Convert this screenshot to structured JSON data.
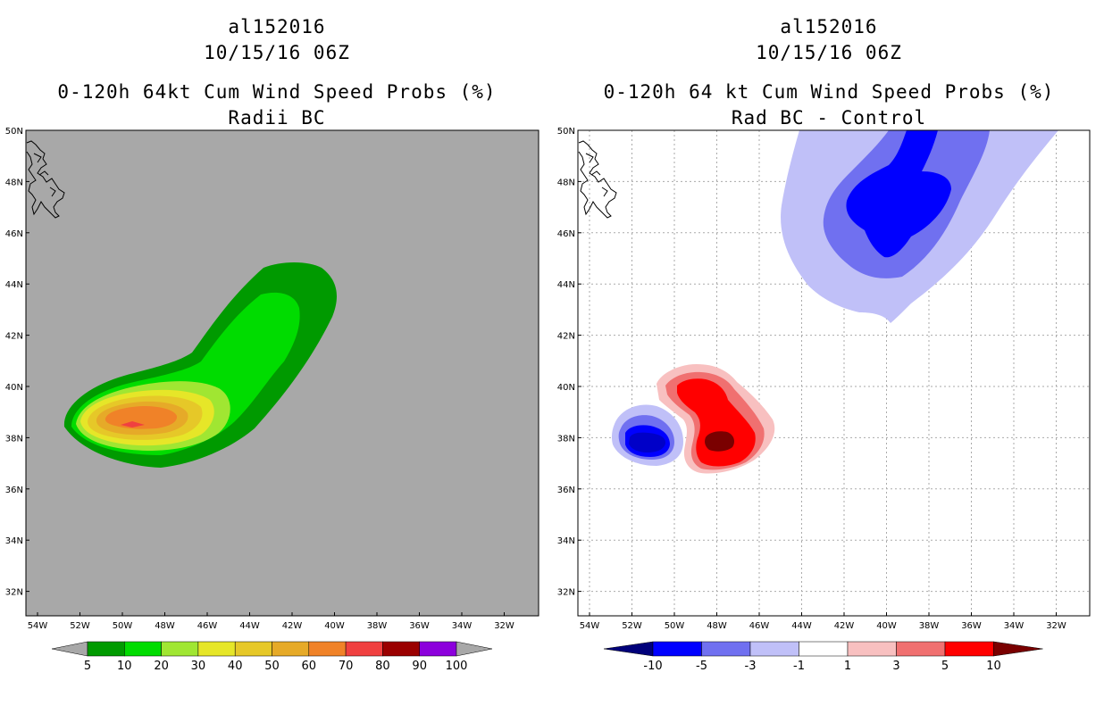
{
  "left_panel": {
    "storm_id": "al152016",
    "date_time": "10/15/16 06Z",
    "title_line1": "0-120h 64kt Cum Wind Speed Probs (%)",
    "title_line2": "Radii BC",
    "background_color": "#a8a8a8",
    "colorbar": {
      "colors": [
        "#009a00",
        "#00dc00",
        "#a0e632",
        "#e6e628",
        "#e6c828",
        "#e6aa28",
        "#f08228",
        "#f04040",
        "#9a0000",
        "#8c00dc"
      ],
      "labels": [
        "5",
        "10",
        "20",
        "30",
        "40",
        "50",
        "60",
        "70",
        "80",
        "90",
        "100"
      ],
      "arrow_color": "#a8a8a8"
    }
  },
  "right_panel": {
    "storm_id": "al152016",
    "date_time": "10/15/16 06Z",
    "title_line1": "0-120h 64 kt Cum Wind Speed Probs (%)",
    "title_line2": "Rad BC - Control",
    "background_color": "#ffffff",
    "colorbar": {
      "colors": [
        "#0000c8",
        "#0000ff",
        "#7070f0",
        "#c0c0f8",
        "#ffffff",
        "#f8c0c0",
        "#f07070",
        "#ff0000"
      ],
      "labels": [
        "-10",
        "-5",
        "-3",
        "-1",
        "1",
        "3",
        "5",
        "10"
      ],
      "low_arrow_color": "#00007a",
      "high_arrow_color": "#7a0000"
    }
  },
  "axes": {
    "lat_labels": [
      "50N",
      "48N",
      "46N",
      "44N",
      "42N",
      "40N",
      "38N",
      "36N",
      "34N",
      "32N"
    ],
    "lon_labels": [
      "54W",
      "52W",
      "50W",
      "48W",
      "46W",
      "44W",
      "42W",
      "40W",
      "38W",
      "36W",
      "34W",
      "32W"
    ]
  }
}
